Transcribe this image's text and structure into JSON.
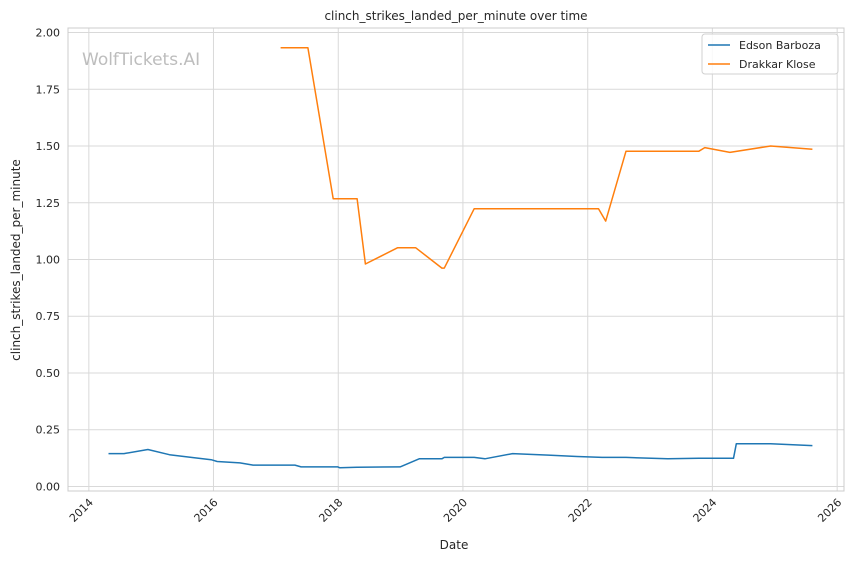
{
  "chart_data": {
    "type": "line",
    "title": "clinch_strikes_landed_per_minute over time",
    "xlabel": "Date",
    "ylabel": "clinch_strikes_landed_per_minute",
    "watermark": "WolfTickets.AI",
    "xlim": [
      "2013-09-01",
      "2026-02-10"
    ],
    "ylim": [
      -0.02,
      2.02
    ],
    "x_ticks": [
      "2014",
      "2016",
      "2018",
      "2020",
      "2022",
      "2024",
      "2026"
    ],
    "y_ticks": [
      "0.00",
      "0.25",
      "0.50",
      "0.75",
      "1.00",
      "1.25",
      "1.50",
      "1.75",
      "2.00"
    ],
    "grid": true,
    "legend_position": "top-right",
    "series": [
      {
        "name": "Edson Barboza",
        "color": "#1f77b4",
        "points": [
          [
            "2014-04-26",
            0.145
          ],
          [
            "2014-07-26",
            0.145
          ],
          [
            "2014-12-13",
            0.163
          ],
          [
            "2015-04-18",
            0.14
          ],
          [
            "2015-09-05",
            0.127
          ],
          [
            "2015-12-19",
            0.118
          ],
          [
            "2016-01-23",
            0.11
          ],
          [
            "2016-06-04",
            0.104
          ],
          [
            "2016-08-20",
            0.094
          ],
          [
            "2017-04-22",
            0.094
          ],
          [
            "2017-05-28",
            0.086
          ],
          [
            "2017-12-30",
            0.086
          ],
          [
            "2018-01-10",
            0.082
          ],
          [
            "2018-04-21",
            0.085
          ],
          [
            "2018-12-29",
            0.086
          ],
          [
            "2019-04-20",
            0.122
          ],
          [
            "2019-08-31",
            0.122
          ],
          [
            "2019-09-14",
            0.128
          ],
          [
            "2020-03-07",
            0.128
          ],
          [
            "2020-05-09",
            0.122
          ],
          [
            "2020-10-18",
            0.145
          ],
          [
            "2021-05-15",
            0.138
          ],
          [
            "2021-10-30",
            0.132
          ],
          [
            "2022-03-26",
            0.128
          ],
          [
            "2022-08-13",
            0.128
          ],
          [
            "2023-04-15",
            0.122
          ],
          [
            "2023-10-14",
            0.124
          ],
          [
            "2024-05-04",
            0.124
          ],
          [
            "2024-05-20",
            0.188
          ],
          [
            "2024-12-07",
            0.188
          ],
          [
            "2025-08-09",
            0.18
          ]
        ]
      },
      {
        "name": "Drakkar Klose",
        "color": "#ff7f0e",
        "points": [
          [
            "2017-01-28",
            1.933
          ],
          [
            "2017-07-07",
            1.933
          ],
          [
            "2017-12-02",
            1.268
          ],
          [
            "2018-04-21",
            1.268
          ],
          [
            "2018-06-09",
            0.98
          ],
          [
            "2018-12-15",
            1.052
          ],
          [
            "2019-03-30",
            1.052
          ],
          [
            "2019-08-31",
            0.962
          ],
          [
            "2019-09-14",
            0.962
          ],
          [
            "2020-03-07",
            1.224
          ],
          [
            "2021-06-05",
            1.224
          ],
          [
            "2022-03-05",
            1.224
          ],
          [
            "2022-04-16",
            1.169
          ],
          [
            "2022-08-13",
            1.477
          ],
          [
            "2023-03-01",
            1.477
          ],
          [
            "2023-10-14",
            1.477
          ],
          [
            "2023-11-18",
            1.493
          ],
          [
            "2024-04-13",
            1.472
          ],
          [
            "2024-12-07",
            1.5
          ],
          [
            "2025-08-09",
            1.486
          ]
        ]
      }
    ]
  }
}
